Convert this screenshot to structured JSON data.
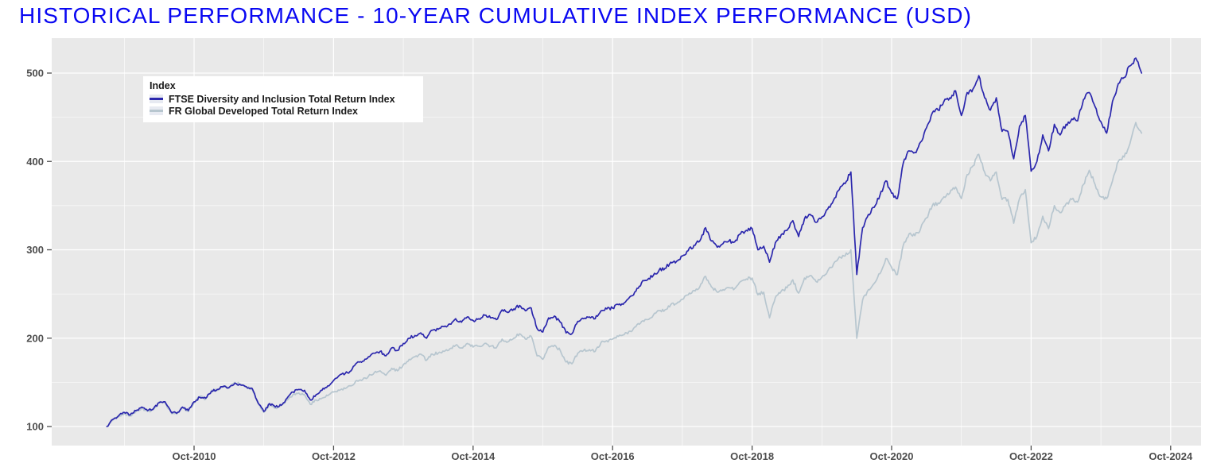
{
  "title": "HISTORICAL PERFORMANCE - 10-YEAR CUMULATIVE INDEX PERFORMANCE (USD)",
  "legend": {
    "title": "Index"
  },
  "colors": {
    "title_blue": "#0a08f2",
    "panel_bg": "#e9e9e9",
    "grid_major": "#ffffff",
    "grid_minor": "#ffffff",
    "axis_text": "#4d4d4d",
    "tick_mark": "#4d4d4d",
    "series_di_blue": "#2b27ad",
    "series_dev_gray": "#b7c6cf"
  },
  "axes": {
    "y_ticks": [
      100,
      200,
      300,
      400,
      500
    ],
    "y_minor": [
      150,
      250,
      350,
      450
    ],
    "x_tick_labels": [
      "Oct-2010",
      "Oct-2012",
      "Oct-2014",
      "Oct-2016",
      "Oct-2018",
      "Oct-2020",
      "Oct-2022",
      "Oct-2024"
    ],
    "x_tick_years": [
      2010.75,
      2012.75,
      2014.75,
      2016.75,
      2018.75,
      2020.75,
      2022.75,
      2024.75
    ],
    "ylim": [
      78,
      540
    ],
    "grid": "on",
    "legend_position": "top-left-inside"
  },
  "chart_data": {
    "type": "line",
    "title": "HISTORICAL PERFORMANCE - 10-YEAR CUMULATIVE INDEX PERFORMANCE (USD)",
    "xlabel": "",
    "ylabel": "",
    "x_unit": "decimal_year_month_end",
    "t_start": 2009.5,
    "t_step_years": 0.0833333,
    "series": [
      {
        "name": "FR Global Developed Total Return Index",
        "color": "#b7c6cf",
        "values": [
          100,
          107,
          111,
          115,
          112,
          117,
          121,
          117,
          119,
          128,
          127,
          116,
          114,
          121,
          117,
          127,
          134,
          131,
          141,
          141,
          146,
          144,
          150,
          148,
          145,
          142,
          126,
          116,
          125,
          121,
          124,
          130,
          136,
          138,
          136,
          125,
          130,
          132,
          135,
          139,
          141,
          143,
          146,
          152,
          153,
          157,
          161,
          163,
          158,
          166,
          163,
          170,
          176,
          179,
          182,
          175,
          182,
          183,
          185,
          188,
          192,
          189,
          194,
          190,
          191,
          194,
          191,
          189,
          199,
          196,
          200,
          205,
          199,
          202,
          180,
          176,
          190,
          192,
          186,
          173,
          171,
          183,
          186,
          187,
          185,
          195,
          197,
          199,
          202,
          204,
          208,
          213,
          219,
          221,
          226,
          231,
          232,
          238,
          239,
          244,
          249,
          254,
          258,
          270,
          258,
          252,
          255,
          257,
          256,
          264,
          267,
          268,
          249,
          252,
          223,
          246,
          253,
          257,
          266,
          251,
          268,
          271,
          264,
          269,
          276,
          284,
          292,
          293,
          300,
          200,
          243,
          255,
          262,
          273,
          290,
          280,
          272,
          305,
          318,
          316,
          324,
          336,
          350,
          353,
          360,
          364,
          371,
          358,
          385,
          395,
          408,
          388,
          378,
          388,
          357,
          357,
          330,
          358,
          368,
          308,
          315,
          338,
          324,
          350,
          342,
          352,
          357,
          354,
          374,
          390,
          374,
          360,
          358,
          378,
          400,
          405,
          420,
          444,
          432
        ]
      },
      {
        "name": "FTSE Diversity and Inclusion Total Return Index",
        "color": "#2b27ad",
        "values": [
          100,
          108,
          112,
          116,
          113,
          118,
          122,
          118,
          120,
          127,
          128,
          117,
          115,
          122,
          118,
          128,
          133,
          132,
          140,
          142,
          145,
          144,
          149,
          147,
          145,
          143,
          127,
          117,
          126,
          122,
          124,
          132,
          139,
          142,
          141,
          130,
          136,
          141,
          146,
          152,
          158,
          160,
          163,
          172,
          174,
          179,
          183,
          185,
          180,
          189,
          186,
          194,
          200,
          203,
          206,
          200,
          209,
          210,
          213,
          216,
          222,
          218,
          224,
          220,
          222,
          226,
          223,
          221,
          232,
          229,
          233,
          237,
          231,
          234,
          211,
          207,
          223,
          225,
          218,
          206,
          205,
          219,
          222,
          224,
          222,
          231,
          233,
          234,
          238,
          240,
          247,
          253,
          263,
          266,
          271,
          277,
          279,
          286,
          287,
          293,
          299,
          305,
          310,
          325,
          310,
          303,
          307,
          310,
          309,
          318,
          322,
          324,
          300,
          304,
          286,
          308,
          317,
          322,
          333,
          315,
          335,
          340,
          331,
          337,
          346,
          356,
          368,
          375,
          388,
          272,
          325,
          340,
          348,
          362,
          378,
          364,
          358,
          398,
          412,
          410,
          422,
          438,
          455,
          458,
          468,
          472,
          480,
          452,
          478,
          482,
          497,
          472,
          458,
          472,
          434,
          434,
          403,
          440,
          452,
          389,
          400,
          430,
          412,
          442,
          430,
          442,
          448,
          446,
          470,
          478,
          462,
          445,
          432,
          468,
          488,
          495,
          508,
          517,
          500
        ]
      }
    ],
    "legend_order_top_to_bottom": [
      "FTSE Diversity and Inclusion Total Return Index",
      "FR Global Developed Total Return Index"
    ]
  }
}
